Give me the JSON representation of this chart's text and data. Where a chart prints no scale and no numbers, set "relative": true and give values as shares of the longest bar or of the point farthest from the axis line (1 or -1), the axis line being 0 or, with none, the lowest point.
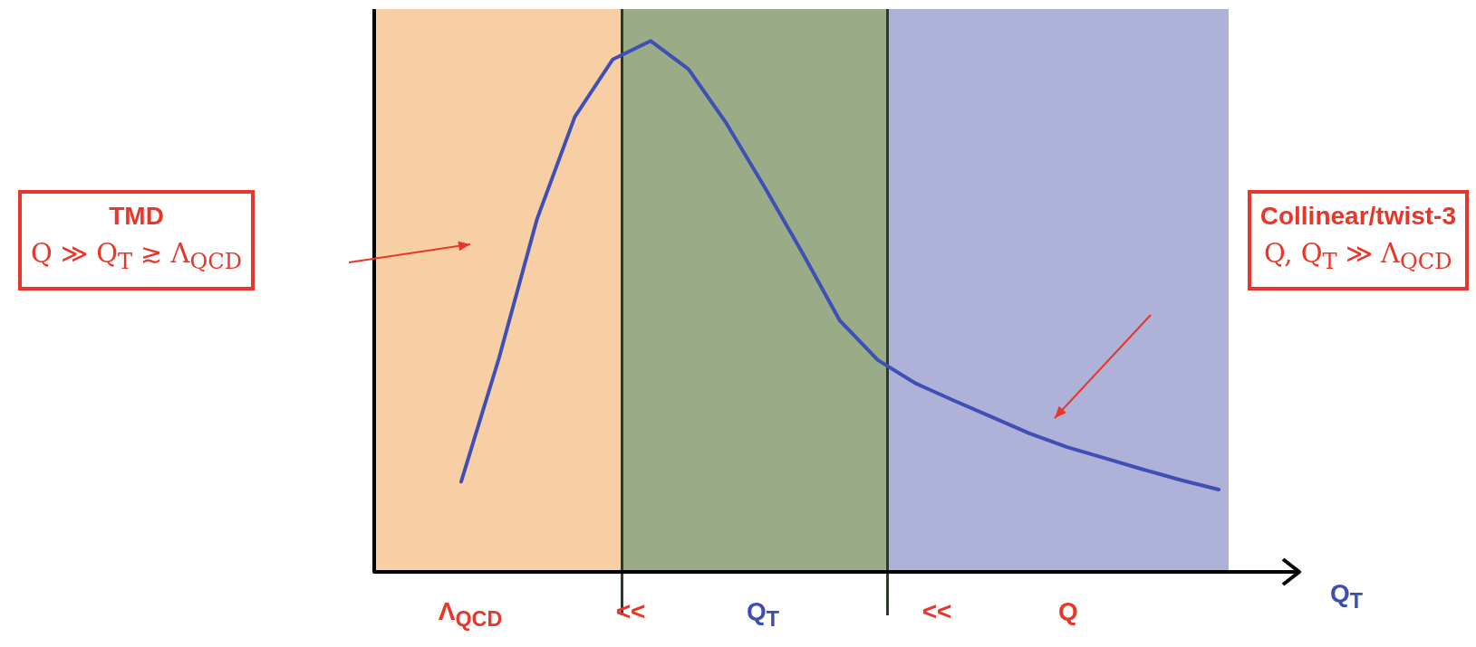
{
  "chart_data": {
    "type": "line",
    "relative": true,
    "xlabel": "Q$_{T}$",
    "legend": false,
    "marker": "none",
    "line_style": "solid",
    "categories": [
      null,
      null,
      null,
      null,
      null,
      null,
      null,
      null,
      null,
      null,
      null,
      null,
      null,
      null,
      null,
      null,
      null,
      null,
      null,
      null,
      null
    ],
    "series": [
      {
        "color": "#3e4fb5",
        "values": [
          0.17,
          0.403,
          0.664,
          0.857,
          0.965,
          1,
          0.947,
          0.845,
          0.726,
          0.602,
          0.473,
          0.399,
          0.355,
          0.323,
          0.292,
          0.261,
          0.235,
          0.214,
          0.193,
          0.173,
          0.155
        ]
      }
    ],
    "annotations": [
      "TMD\nQ ≫ Q$_{T}$ ≳ Λ$_{QCD}$",
      "Collinear/twist-3\nQ, Q$_{T}$ ≫ Λ$_{QCD}$",
      "Λ$_{QCD}$",
      "<<",
      "Q$_{T}$",
      "<<",
      "Q"
    ]
  }
}
